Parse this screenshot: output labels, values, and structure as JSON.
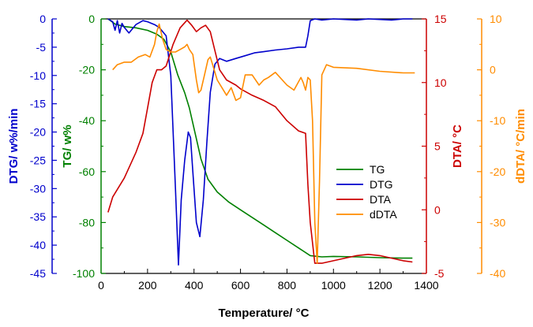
{
  "chart_data": {
    "type": "line",
    "xlabel": "Temperature/ °C",
    "x_ticks": [
      0,
      200,
      400,
      600,
      800,
      1000,
      1200,
      1400
    ],
    "xlim": [
      0,
      1400
    ],
    "axes": {
      "dtg": {
        "label": "DTG/ w%/min",
        "ticks": [
          0,
          -5,
          -10,
          -15,
          -20,
          -25,
          -30,
          -35,
          -40,
          -45
        ],
        "ylim": [
          -45,
          0
        ],
        "color": "#0000cc"
      },
      "tg": {
        "label": "TG/ w%",
        "ticks": [
          0,
          -20,
          -40,
          -60,
          -80,
          -100
        ],
        "ylim": [
          -100,
          0
        ],
        "color": "#008000"
      },
      "dta": {
        "label": "DTA/ °C",
        "ticks": [
          15,
          10,
          5,
          0,
          -5
        ],
        "ylim": [
          -5,
          15
        ],
        "color": "#cc0000"
      },
      "ddta": {
        "label": "dDTA/ °C/min",
        "ticks": [
          10,
          0,
          -10,
          -20,
          -30,
          -40
        ],
        "ylim": [
          -40,
          10
        ],
        "color": "#ff8c00"
      }
    },
    "legend_position": "center-right",
    "series": [
      {
        "name": "TG",
        "axis": "tg",
        "color": "#008000",
        "x": [
          30,
          60,
          100,
          150,
          200,
          240,
          270,
          300,
          330,
          360,
          380,
          400,
          430,
          460,
          500,
          550,
          600,
          650,
          700,
          750,
          800,
          850,
          900,
          950,
          1000,
          1100,
          1200,
          1300,
          1340
        ],
        "y": [
          0,
          -2,
          -3,
          -3.5,
          -4.5,
          -6,
          -8,
          -13,
          -22,
          -29,
          -35,
          -43,
          -55,
          -63,
          -68,
          -72,
          -75,
          -78,
          -81,
          -84,
          -87,
          -90,
          -93,
          -93.5,
          -93.3,
          -93.5,
          -93.8,
          -94,
          -94
        ]
      },
      {
        "name": "DTG",
        "axis": "dtg",
        "color": "#0000cc",
        "x": [
          30,
          50,
          60,
          70,
          80,
          90,
          100,
          120,
          150,
          180,
          200,
          230,
          250,
          280,
          300,
          320,
          333,
          345,
          360,
          375,
          385,
          395,
          410,
          425,
          440,
          455,
          470,
          490,
          510,
          540,
          580,
          620,
          660,
          700,
          750,
          800,
          850,
          880,
          890,
          900,
          920,
          950,
          1000,
          1050,
          1100,
          1150,
          1200,
          1250,
          1300,
          1340
        ],
        "y": [
          0,
          -0.5,
          -2,
          -0.3,
          -2.5,
          -0.8,
          -1.5,
          -2.5,
          -1,
          -0.3,
          -0.5,
          -1,
          -1.5,
          -3,
          -10,
          -30,
          -43.5,
          -32,
          -25,
          -20,
          -21,
          -27,
          -36,
          -38.5,
          -32,
          -22,
          -13,
          -8,
          -7,
          -7.5,
          -7,
          -6.5,
          -6,
          -5.8,
          -5.5,
          -5.3,
          -5,
          -5,
          -3,
          -0.3,
          0,
          -0.2,
          0,
          -0.1,
          -0.2,
          0,
          -0.1,
          -0.2,
          0,
          0
        ]
      },
      {
        "name": "DTA",
        "axis": "dta",
        "color": "#cc0000",
        "x": [
          30,
          50,
          100,
          150,
          180,
          200,
          220,
          240,
          260,
          280,
          310,
          340,
          370,
          390,
          410,
          430,
          450,
          470,
          490,
          510,
          540,
          580,
          600,
          650,
          700,
          750,
          800,
          850,
          880,
          890,
          900,
          920,
          950,
          1000,
          1100,
          1150,
          1200,
          1250,
          1300,
          1340
        ],
        "y": [
          -0.2,
          1,
          2.5,
          4.5,
          6,
          8,
          10,
          11,
          11,
          11.3,
          13,
          14.3,
          14.9,
          14.5,
          14,
          14.3,
          14.5,
          14,
          12.5,
          11,
          10.2,
          9.8,
          9.5,
          9,
          8.6,
          8.1,
          7,
          6.2,
          6,
          2,
          -1,
          -4.2,
          -4.2,
          -4,
          -3.6,
          -3.5,
          -3.6,
          -3.8,
          -4,
          -4.1
        ]
      },
      {
        "name": "dDTA",
        "axis": "ddta",
        "color": "#ff8c00",
        "x": [
          50,
          70,
          100,
          130,
          160,
          190,
          210,
          230,
          240,
          250,
          265,
          280,
          300,
          320,
          340,
          360,
          370,
          380,
          395,
          410,
          420,
          430,
          445,
          460,
          470,
          480,
          500,
          520,
          540,
          560,
          580,
          600,
          620,
          650,
          680,
          700,
          720,
          750,
          800,
          830,
          860,
          870,
          880,
          890,
          900,
          910,
          920,
          930,
          940,
          950,
          970,
          1000,
          1100,
          1200,
          1300,
          1350
        ],
        "y": [
          0,
          1,
          1.5,
          1.5,
          2.5,
          3,
          2.5,
          5,
          7.5,
          9,
          6,
          4,
          3.5,
          3.5,
          4,
          4.5,
          5,
          4,
          3,
          -2,
          -4.5,
          -4,
          -1,
          2,
          2.5,
          1,
          -2,
          -3.5,
          -5,
          -3.5,
          -6,
          -5.5,
          -1,
          -1,
          -3,
          -2,
          -1.5,
          -0.5,
          -3,
          -4,
          -1.5,
          -2.5,
          -4,
          -1.5,
          -2,
          -10,
          -30,
          -38,
          -22,
          -1,
          1,
          0.5,
          0.3,
          -0.3,
          -0.6,
          -0.6
        ]
      }
    ]
  }
}
